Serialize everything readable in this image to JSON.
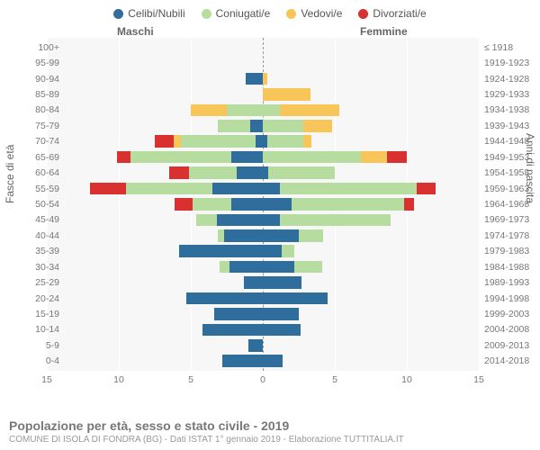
{
  "legend": [
    {
      "label": "Celibi/Nubili",
      "color": "#2f6d9d"
    },
    {
      "label": "Coniugati/e",
      "color": "#b7dca0"
    },
    {
      "label": "Vedovi/e",
      "color": "#f7c558"
    },
    {
      "label": "Divorziati/e",
      "color": "#d93030"
    }
  ],
  "headers": {
    "male": "Maschi",
    "female": "Femmine"
  },
  "axis_titles": {
    "left": "Fasce di età",
    "right": "Anni di nascita"
  },
  "xaxis": {
    "min": -15,
    "max": 15,
    "ticks": [
      -15,
      -10,
      -5,
      0,
      5,
      10,
      15
    ],
    "labels": [
      "15",
      "10",
      "5",
      "0",
      "5",
      "10",
      "15"
    ]
  },
  "plot": {
    "bg": "#f7f7f7",
    "grid_color": "#ffffff"
  },
  "title": "Popolazione per età, sesso e stato civile - 2019",
  "subtitle": "COMUNE DI ISOLA DI FONDRA (BG) - Dati ISTAT 1° gennaio 2019 - Elaborazione TUTTITALIA.IT",
  "rows": [
    {
      "age": "100+",
      "birth": "≤ 1918",
      "m": [
        0,
        0,
        0,
        0
      ],
      "f": [
        0,
        0,
        0,
        0
      ]
    },
    {
      "age": "95-99",
      "birth": "1919-1923",
      "m": [
        0,
        0,
        0,
        0
      ],
      "f": [
        0,
        0,
        0,
        0
      ]
    },
    {
      "age": "90-94",
      "birth": "1924-1928",
      "m": [
        1.2,
        0,
        0,
        0
      ],
      "f": [
        0,
        0,
        0.3,
        0
      ]
    },
    {
      "age": "85-89",
      "birth": "1929-1933",
      "m": [
        0,
        0,
        0,
        0
      ],
      "f": [
        0,
        0,
        3.3,
        0
      ]
    },
    {
      "age": "80-84",
      "birth": "1934-1938",
      "m": [
        0,
        2.5,
        2.5,
        0
      ],
      "f": [
        0,
        1.2,
        4.1,
        0
      ]
    },
    {
      "age": "75-79",
      "birth": "1939-1943",
      "m": [
        0.9,
        2.2,
        0,
        0
      ],
      "f": [
        0,
        2.8,
        2.0,
        0
      ]
    },
    {
      "age": "70-74",
      "birth": "1944-1948",
      "m": [
        0.5,
        5.2,
        0.5,
        1.3
      ],
      "f": [
        0.3,
        2.5,
        0.6,
        0
      ]
    },
    {
      "age": "65-69",
      "birth": "1949-1953",
      "m": [
        2.2,
        7.0,
        0,
        0.9
      ],
      "f": [
        0,
        6.8,
        1.8,
        1.4
      ]
    },
    {
      "age": "60-64",
      "birth": "1954-1958",
      "m": [
        1.8,
        3.3,
        0,
        1.4
      ],
      "f": [
        0.4,
        4.6,
        0,
        0
      ]
    },
    {
      "age": "55-59",
      "birth": "1959-1963",
      "m": [
        3.5,
        6.0,
        0,
        2.5
      ],
      "f": [
        1.2,
        9.5,
        0,
        1.3
      ]
    },
    {
      "age": "50-54",
      "birth": "1964-1968",
      "m": [
        2.2,
        2.7,
        0,
        1.2
      ],
      "f": [
        2.0,
        7.8,
        0,
        0.7
      ]
    },
    {
      "age": "45-49",
      "birth": "1969-1973",
      "m": [
        3.2,
        1.4,
        0,
        0
      ],
      "f": [
        1.2,
        7.7,
        0,
        0
      ]
    },
    {
      "age": "40-44",
      "birth": "1974-1978",
      "m": [
        2.7,
        0.4,
        0,
        0
      ],
      "f": [
        2.5,
        1.7,
        0,
        0
      ]
    },
    {
      "age": "35-39",
      "birth": "1979-1983",
      "m": [
        5.8,
        0,
        0,
        0
      ],
      "f": [
        1.3,
        0.9,
        0,
        0
      ]
    },
    {
      "age": "30-34",
      "birth": "1984-1988",
      "m": [
        2.3,
        0.7,
        0,
        0
      ],
      "f": [
        2.2,
        1.9,
        0,
        0
      ]
    },
    {
      "age": "25-29",
      "birth": "1989-1993",
      "m": [
        1.3,
        0,
        0,
        0
      ],
      "f": [
        2.7,
        0,
        0,
        0
      ]
    },
    {
      "age": "20-24",
      "birth": "1994-1998",
      "m": [
        5.3,
        0,
        0,
        0
      ],
      "f": [
        4.5,
        0,
        0,
        0
      ]
    },
    {
      "age": "15-19",
      "birth": "1999-2003",
      "m": [
        3.4,
        0,
        0,
        0
      ],
      "f": [
        2.5,
        0,
        0,
        0
      ]
    },
    {
      "age": "10-14",
      "birth": "2004-2008",
      "m": [
        4.2,
        0,
        0,
        0
      ],
      "f": [
        2.6,
        0,
        0,
        0
      ]
    },
    {
      "age": "5-9",
      "birth": "2009-2013",
      "m": [
        1.0,
        0,
        0,
        0
      ],
      "f": [
        0,
        0,
        0,
        0
      ]
    },
    {
      "age": "0-4",
      "birth": "2014-2018",
      "m": [
        2.8,
        0,
        0,
        0
      ],
      "f": [
        1.4,
        0,
        0,
        0
      ]
    }
  ]
}
